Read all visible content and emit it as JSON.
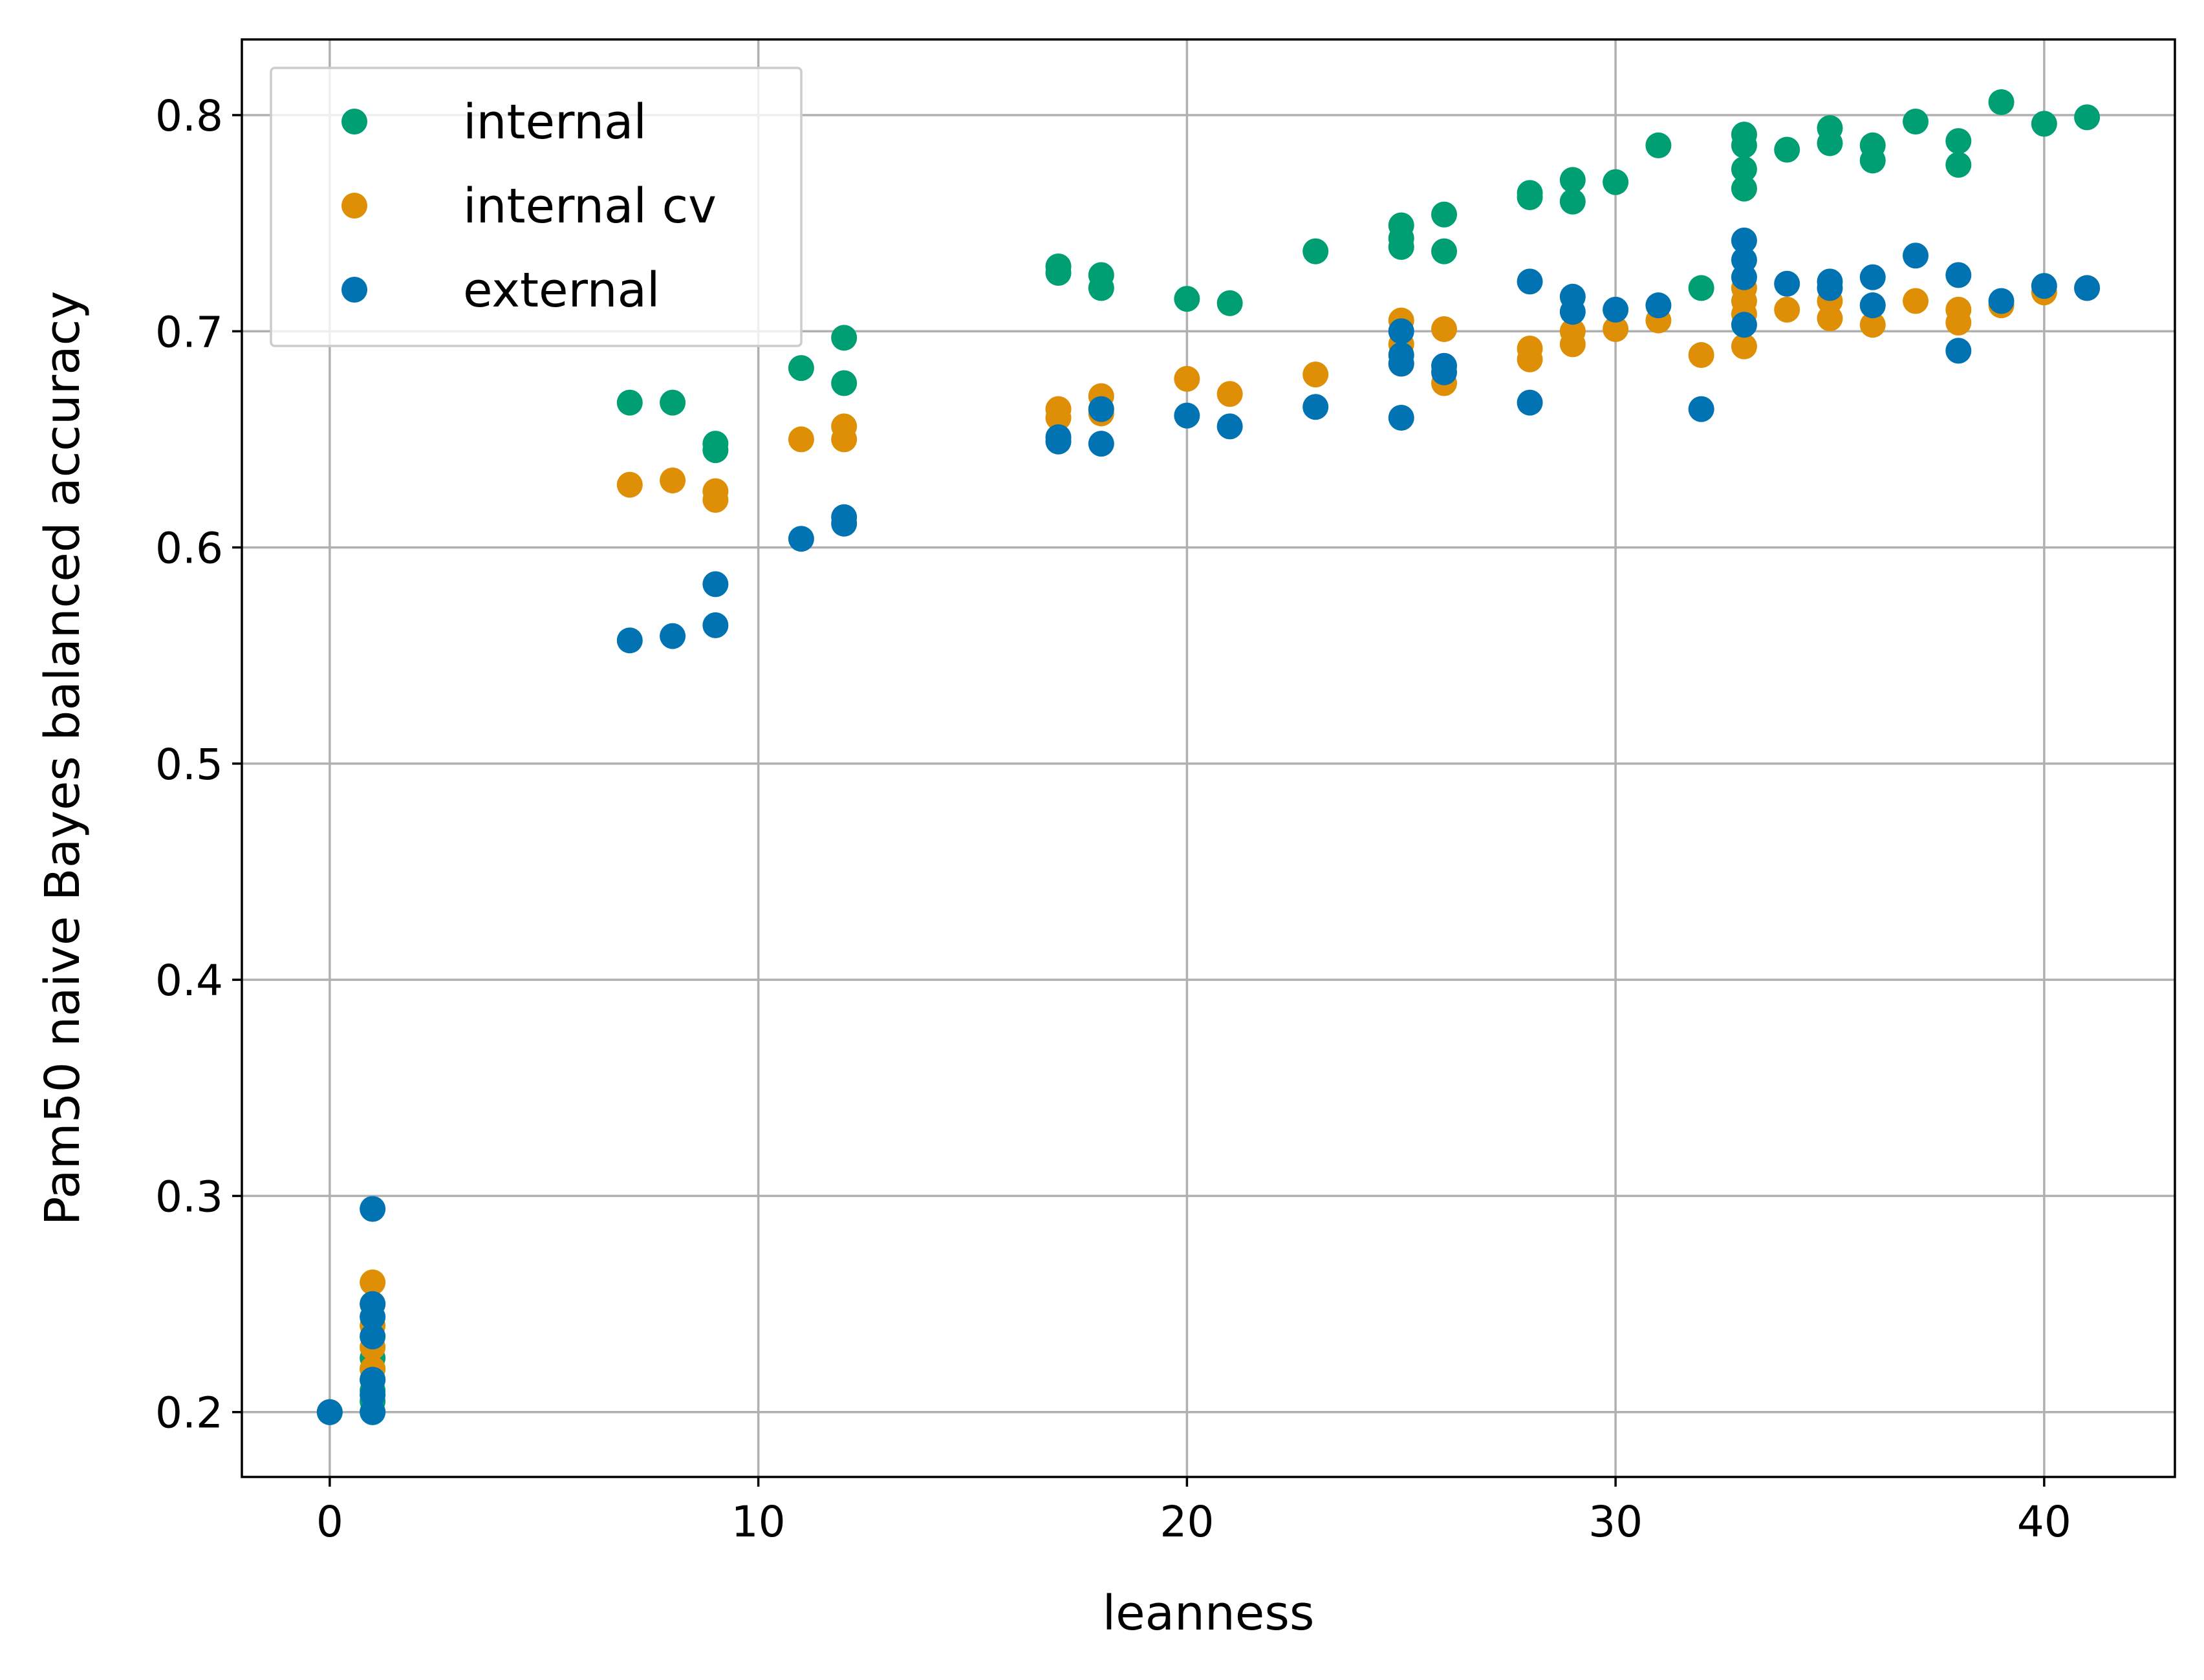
{
  "chart_data": {
    "type": "scatter",
    "xlabel": "leanness",
    "ylabel": "Pam50 naive Bayes balanced accuracy",
    "xlim": [
      -2.05,
      43.05
    ],
    "ylim": [
      0.17,
      0.835
    ],
    "xticks": [
      0,
      10,
      20,
      30,
      40
    ],
    "yticks": [
      0.2,
      0.3,
      0.4,
      0.5,
      0.6,
      0.7,
      0.8
    ],
    "xtick_labels": [
      "0",
      "10",
      "20",
      "30",
      "40"
    ],
    "ytick_labels": [
      "0.2",
      "0.3",
      "0.4",
      "0.5",
      "0.6",
      "0.7",
      "0.8"
    ],
    "grid": true,
    "legend_position": "upper-left",
    "series": [
      {
        "name": "internal",
        "color": "#009e73",
        "points": [
          [
            0,
            0.2
          ],
          [
            1,
            0.2
          ],
          [
            1,
            0.205
          ],
          [
            1,
            0.21
          ],
          [
            1,
            0.215
          ],
          [
            1,
            0.22
          ],
          [
            1,
            0.225
          ],
          [
            7,
            0.667
          ],
          [
            8,
            0.667
          ],
          [
            9,
            0.648
          ],
          [
            9,
            0.645
          ],
          [
            11,
            0.683
          ],
          [
            12,
            0.697
          ],
          [
            12,
            0.676
          ],
          [
            17,
            0.73
          ],
          [
            17,
            0.727
          ],
          [
            18,
            0.726
          ],
          [
            18,
            0.72
          ],
          [
            20,
            0.715
          ],
          [
            21,
            0.713
          ],
          [
            23,
            0.737
          ],
          [
            25,
            0.749
          ],
          [
            25,
            0.743
          ],
          [
            25,
            0.739
          ],
          [
            26,
            0.754
          ],
          [
            26,
            0.737
          ],
          [
            28,
            0.764
          ],
          [
            28,
            0.762
          ],
          [
            29,
            0.77
          ],
          [
            29,
            0.76
          ],
          [
            30,
            0.769
          ],
          [
            31,
            0.786
          ],
          [
            32,
            0.72
          ],
          [
            33,
            0.791
          ],
          [
            33,
            0.786
          ],
          [
            33,
            0.775
          ],
          [
            33,
            0.766
          ],
          [
            34,
            0.784
          ],
          [
            35,
            0.794
          ],
          [
            35,
            0.787
          ],
          [
            36,
            0.786
          ],
          [
            36,
            0.779
          ],
          [
            37,
            0.797
          ],
          [
            38,
            0.788
          ],
          [
            38,
            0.777
          ],
          [
            39,
            0.806
          ],
          [
            40,
            0.796
          ],
          [
            41,
            0.799
          ]
        ]
      },
      {
        "name": "internal cv",
        "color": "#de8f05",
        "points": [
          [
            0,
            0.2
          ],
          [
            1,
            0.26
          ],
          [
            1,
            0.25
          ],
          [
            1,
            0.24
          ],
          [
            1,
            0.23
          ],
          [
            1,
            0.22
          ],
          [
            7,
            0.629
          ],
          [
            8,
            0.631
          ],
          [
            9,
            0.626
          ],
          [
            9,
            0.622
          ],
          [
            11,
            0.65
          ],
          [
            12,
            0.656
          ],
          [
            12,
            0.65
          ],
          [
            17,
            0.664
          ],
          [
            17,
            0.66
          ],
          [
            18,
            0.67
          ],
          [
            18,
            0.662
          ],
          [
            20,
            0.678
          ],
          [
            21,
            0.671
          ],
          [
            23,
            0.68
          ],
          [
            25,
            0.705
          ],
          [
            25,
            0.694
          ],
          [
            25,
            0.685
          ],
          [
            26,
            0.701
          ],
          [
            26,
            0.676
          ],
          [
            28,
            0.692
          ],
          [
            28,
            0.687
          ],
          [
            29,
            0.7
          ],
          [
            29,
            0.694
          ],
          [
            30,
            0.701
          ],
          [
            31,
            0.705
          ],
          [
            32,
            0.689
          ],
          [
            33,
            0.72
          ],
          [
            33,
            0.714
          ],
          [
            33,
            0.708
          ],
          [
            33,
            0.693
          ],
          [
            34,
            0.71
          ],
          [
            35,
            0.714
          ],
          [
            35,
            0.706
          ],
          [
            36,
            0.712
          ],
          [
            36,
            0.703
          ],
          [
            37,
            0.714
          ],
          [
            38,
            0.71
          ],
          [
            38,
            0.704
          ],
          [
            39,
            0.712
          ],
          [
            40,
            0.718
          ],
          [
            41,
            0.72
          ]
        ]
      },
      {
        "name": "external",
        "color": "#0173b2",
        "points": [
          [
            0,
            0.2
          ],
          [
            1,
            0.294
          ],
          [
            1,
            0.25
          ],
          [
            1,
            0.244
          ],
          [
            1,
            0.235
          ],
          [
            1,
            0.215
          ],
          [
            1,
            0.208
          ],
          [
            1,
            0.2
          ],
          [
            7,
            0.557
          ],
          [
            8,
            0.559
          ],
          [
            9,
            0.583
          ],
          [
            9,
            0.564
          ],
          [
            11,
            0.604
          ],
          [
            12,
            0.614
          ],
          [
            12,
            0.611
          ],
          [
            17,
            0.651
          ],
          [
            17,
            0.649
          ],
          [
            18,
            0.664
          ],
          [
            18,
            0.648
          ],
          [
            20,
            0.661
          ],
          [
            21,
            0.656
          ],
          [
            23,
            0.665
          ],
          [
            25,
            0.7
          ],
          [
            25,
            0.689
          ],
          [
            25,
            0.685
          ],
          [
            25,
            0.66
          ],
          [
            26,
            0.684
          ],
          [
            26,
            0.681
          ],
          [
            28,
            0.723
          ],
          [
            28,
            0.667
          ],
          [
            29,
            0.716
          ],
          [
            29,
            0.709
          ],
          [
            30,
            0.71
          ],
          [
            31,
            0.712
          ],
          [
            32,
            0.664
          ],
          [
            33,
            0.742
          ],
          [
            33,
            0.733
          ],
          [
            33,
            0.725
          ],
          [
            33,
            0.703
          ],
          [
            34,
            0.722
          ],
          [
            35,
            0.723
          ],
          [
            35,
            0.72
          ],
          [
            36,
            0.725
          ],
          [
            36,
            0.712
          ],
          [
            37,
            0.735
          ],
          [
            38,
            0.726
          ],
          [
            38,
            0.691
          ],
          [
            39,
            0.714
          ],
          [
            40,
            0.721
          ],
          [
            41,
            0.72
          ]
        ]
      }
    ]
  }
}
